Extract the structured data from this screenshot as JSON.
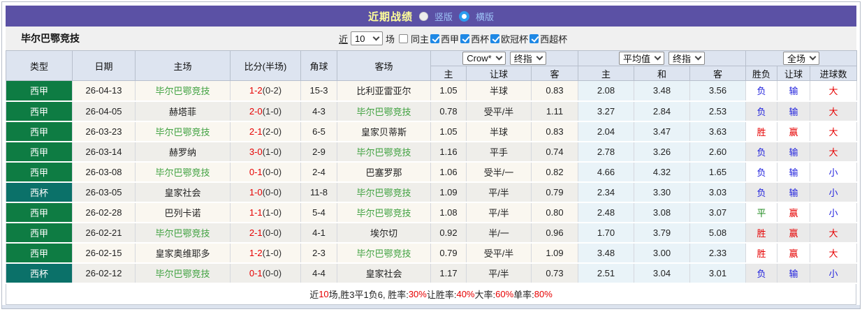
{
  "colors": {
    "title_bar_bg": "#5B51A5",
    "title_text": "#FFFF99",
    "radio_label": "#9DC3F7",
    "league_badge_green": "#0E7C43",
    "cup_badge_teal": "#0B7169",
    "team_highlight_green": "#3FA13F",
    "win_red": "#E60000",
    "lose_blue": "#2222DD",
    "draw_green": "#1D8A1D",
    "avg_col_bg": "#E9F3F8",
    "checkbox_blue": "#1E88E5"
  },
  "title_bar": {
    "title": "近期战绩",
    "radios": [
      {
        "label": "竖版",
        "selected": false
      },
      {
        "label": "横版",
        "selected": true
      }
    ]
  },
  "team_bar": {
    "team": "毕尔巴鄂竞技",
    "near_label": "近",
    "count_value": "10",
    "count_suffix": "场",
    "same_home_label": "同主",
    "same_home_checked": false,
    "leagues": [
      {
        "label": "西甲",
        "checked": true
      },
      {
        "label": "西杯",
        "checked": true
      },
      {
        "label": "欧冠杯",
        "checked": true
      },
      {
        "label": "西超杯",
        "checked": true
      }
    ]
  },
  "table": {
    "static_headers": [
      "类型",
      "日期",
      "主场",
      "比分(半场)",
      "角球",
      "客场"
    ],
    "group_selects": {
      "odds": [
        "Crow*",
        "终指"
      ],
      "europe": [
        "平均值",
        "终指"
      ],
      "result": [
        "全场"
      ]
    },
    "sub_headers": [
      "主",
      "让球",
      "客",
      "主",
      "和",
      "客",
      "胜负",
      "让球",
      "进球数"
    ],
    "rows": [
      {
        "type": "西甲",
        "type_color": "green",
        "date": "26-04-13",
        "home": "毕尔巴鄂竞技",
        "home_hl": true,
        "score": "1-2",
        "half": "(0-2)",
        "corner": "15-3",
        "away": "比利亚雷亚尔",
        "away_hl": false,
        "odds_home": "1.05",
        "handicap": "半球",
        "odds_away": "0.83",
        "eu_home": "2.08",
        "eu_draw": "3.48",
        "eu_away": "3.56",
        "outcome": {
          "t": "负",
          "c": "blue"
        },
        "handicap_result": {
          "t": "输",
          "c": "blue"
        },
        "goals": {
          "t": "大",
          "c": "red"
        }
      },
      {
        "type": "西甲",
        "type_color": "green",
        "date": "26-04-05",
        "home": "赫塔菲",
        "home_hl": false,
        "score": "2-0",
        "half": "(1-0)",
        "corner": "4-3",
        "away": "毕尔巴鄂竞技",
        "away_hl": true,
        "odds_home": "0.78",
        "handicap": "受平/半",
        "odds_away": "1.11",
        "eu_home": "3.27",
        "eu_draw": "2.84",
        "eu_away": "2.53",
        "outcome": {
          "t": "负",
          "c": "blue"
        },
        "handicap_result": {
          "t": "输",
          "c": "blue"
        },
        "goals": {
          "t": "大",
          "c": "red"
        }
      },
      {
        "type": "西甲",
        "type_color": "green",
        "date": "26-03-23",
        "home": "毕尔巴鄂竞技",
        "home_hl": true,
        "score": "2-1",
        "half": "(2-0)",
        "corner": "6-5",
        "away": "皇家贝蒂斯",
        "away_hl": false,
        "odds_home": "1.05",
        "handicap": "半球",
        "odds_away": "0.83",
        "eu_home": "2.04",
        "eu_draw": "3.47",
        "eu_away": "3.63",
        "outcome": {
          "t": "胜",
          "c": "red"
        },
        "handicap_result": {
          "t": "赢",
          "c": "red"
        },
        "goals": {
          "t": "大",
          "c": "red"
        }
      },
      {
        "type": "西甲",
        "type_color": "green",
        "date": "26-03-14",
        "home": "赫罗纳",
        "home_hl": false,
        "score": "3-0",
        "half": "(1-0)",
        "corner": "2-9",
        "away": "毕尔巴鄂竞技",
        "away_hl": true,
        "odds_home": "1.16",
        "handicap": "平手",
        "odds_away": "0.74",
        "eu_home": "2.78",
        "eu_draw": "3.26",
        "eu_away": "2.60",
        "outcome": {
          "t": "负",
          "c": "blue"
        },
        "handicap_result": {
          "t": "输",
          "c": "blue"
        },
        "goals": {
          "t": "大",
          "c": "red"
        }
      },
      {
        "type": "西甲",
        "type_color": "green",
        "date": "26-03-08",
        "home": "毕尔巴鄂竞技",
        "home_hl": true,
        "score": "0-1",
        "half": "(0-0)",
        "corner": "2-4",
        "away": "巴塞罗那",
        "away_hl": false,
        "odds_home": "1.06",
        "handicap": "受半/一",
        "odds_away": "0.82",
        "eu_home": "4.66",
        "eu_draw": "4.32",
        "eu_away": "1.65",
        "outcome": {
          "t": "负",
          "c": "blue"
        },
        "handicap_result": {
          "t": "输",
          "c": "blue"
        },
        "goals": {
          "t": "小",
          "c": "blue"
        }
      },
      {
        "type": "西杯",
        "type_color": "teal",
        "date": "26-03-05",
        "home": "皇家社会",
        "home_hl": false,
        "score": "1-0",
        "half": "(0-0)",
        "corner": "11-8",
        "away": "毕尔巴鄂竞技",
        "away_hl": true,
        "odds_home": "1.09",
        "handicap": "平/半",
        "odds_away": "0.79",
        "eu_home": "2.34",
        "eu_draw": "3.30",
        "eu_away": "3.03",
        "outcome": {
          "t": "负",
          "c": "blue"
        },
        "handicap_result": {
          "t": "输",
          "c": "blue"
        },
        "goals": {
          "t": "小",
          "c": "blue"
        }
      },
      {
        "type": "西甲",
        "type_color": "green",
        "date": "26-02-28",
        "home": "巴列卡诺",
        "home_hl": false,
        "score": "1-1",
        "half": "(1-0)",
        "corner": "5-4",
        "away": "毕尔巴鄂竞技",
        "away_hl": true,
        "odds_home": "1.08",
        "handicap": "平/半",
        "odds_away": "0.80",
        "eu_home": "2.48",
        "eu_draw": "3.08",
        "eu_away": "3.07",
        "outcome": {
          "t": "平",
          "c": "green"
        },
        "handicap_result": {
          "t": "赢",
          "c": "red"
        },
        "goals": {
          "t": "小",
          "c": "blue"
        }
      },
      {
        "type": "西甲",
        "type_color": "green",
        "date": "26-02-21",
        "home": "毕尔巴鄂竞技",
        "home_hl": true,
        "score": "2-1",
        "half": "(0-0)",
        "corner": "4-1",
        "away": "埃尔切",
        "away_hl": false,
        "odds_home": "0.92",
        "handicap": "半/一",
        "odds_away": "0.96",
        "eu_home": "1.70",
        "eu_draw": "3.79",
        "eu_away": "5.08",
        "outcome": {
          "t": "胜",
          "c": "red"
        },
        "handicap_result": {
          "t": "赢",
          "c": "red"
        },
        "goals": {
          "t": "大",
          "c": "red"
        }
      },
      {
        "type": "西甲",
        "type_color": "green",
        "date": "26-02-15",
        "home": "皇家奥维耶多",
        "home_hl": false,
        "score": "1-2",
        "half": "(1-0)",
        "corner": "2-3",
        "away": "毕尔巴鄂竞技",
        "away_hl": true,
        "odds_home": "0.79",
        "handicap": "受平/半",
        "odds_away": "1.09",
        "eu_home": "3.48",
        "eu_draw": "3.00",
        "eu_away": "2.33",
        "outcome": {
          "t": "胜",
          "c": "red"
        },
        "handicap_result": {
          "t": "赢",
          "c": "red"
        },
        "goals": {
          "t": "大",
          "c": "red"
        }
      },
      {
        "type": "西杯",
        "type_color": "teal",
        "date": "26-02-12",
        "home": "毕尔巴鄂竞技",
        "home_hl": true,
        "score": "0-1",
        "half": "(0-0)",
        "corner": "4-4",
        "away": "皇家社会",
        "away_hl": false,
        "odds_home": "1.17",
        "handicap": "平/半",
        "odds_away": "0.73",
        "eu_home": "2.51",
        "eu_draw": "3.04",
        "eu_away": "3.01",
        "outcome": {
          "t": "负",
          "c": "blue"
        },
        "handicap_result": {
          "t": "输",
          "c": "blue"
        },
        "goals": {
          "t": "小",
          "c": "blue"
        }
      }
    ]
  },
  "summary": {
    "segments": [
      {
        "text": "近"
      },
      {
        "text": "10",
        "red": true
      },
      {
        "text": "场,胜3平1负6, 胜率:"
      },
      {
        "text": "30%",
        "red": true
      },
      {
        "text": " 让胜率:"
      },
      {
        "text": "40%",
        "red": true
      },
      {
        "text": " 大率:"
      },
      {
        "text": "60%",
        "red": true
      },
      {
        "text": " 单率:"
      },
      {
        "text": "80%",
        "red": true
      }
    ]
  }
}
